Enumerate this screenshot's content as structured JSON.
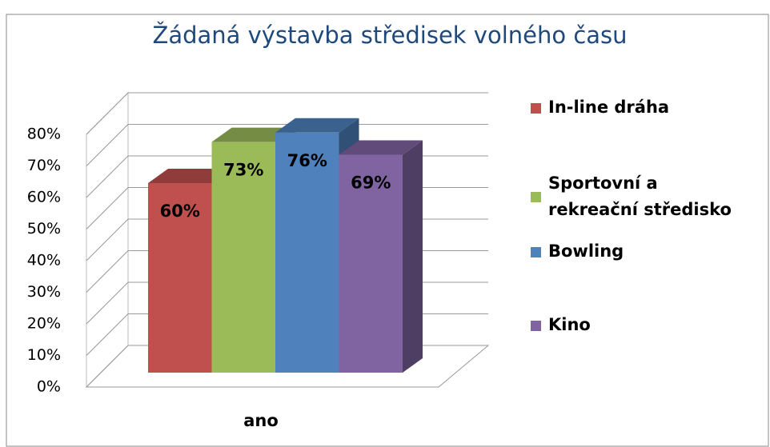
{
  "chart_data": {
    "type": "bar3d",
    "title": "Žádaná výstavba středisek volného času",
    "categories": [
      "ano"
    ],
    "series": [
      {
        "name": "In-line dráha",
        "color": "#c0504d",
        "values": [
          60
        ],
        "value_labels": [
          "60%"
        ]
      },
      {
        "name": "Sportovní a rekreační středisko",
        "color": "#9bbb59",
        "values": [
          73
        ],
        "value_labels": [
          "73%"
        ]
      },
      {
        "name": "Bowling",
        "color": "#4f81bd",
        "values": [
          76
        ],
        "value_labels": [
          "76%"
        ]
      },
      {
        "name": "Kino",
        "color": "#8064a2",
        "values": [
          69
        ],
        "value_labels": [
          "69%"
        ]
      }
    ],
    "ylim": [
      0,
      80
    ],
    "yticks": [
      {
        "value": 0,
        "label": "0%"
      },
      {
        "value": 10,
        "label": "10%"
      },
      {
        "value": 20,
        "label": "20%"
      },
      {
        "value": 30,
        "label": "30%"
      },
      {
        "value": 40,
        "label": "40%"
      },
      {
        "value": 50,
        "label": "50%"
      },
      {
        "value": 60,
        "label": "60%"
      },
      {
        "value": 70,
        "label": "70%"
      },
      {
        "value": 80,
        "label": "80%"
      }
    ],
    "grid": true,
    "legend": "right"
  }
}
